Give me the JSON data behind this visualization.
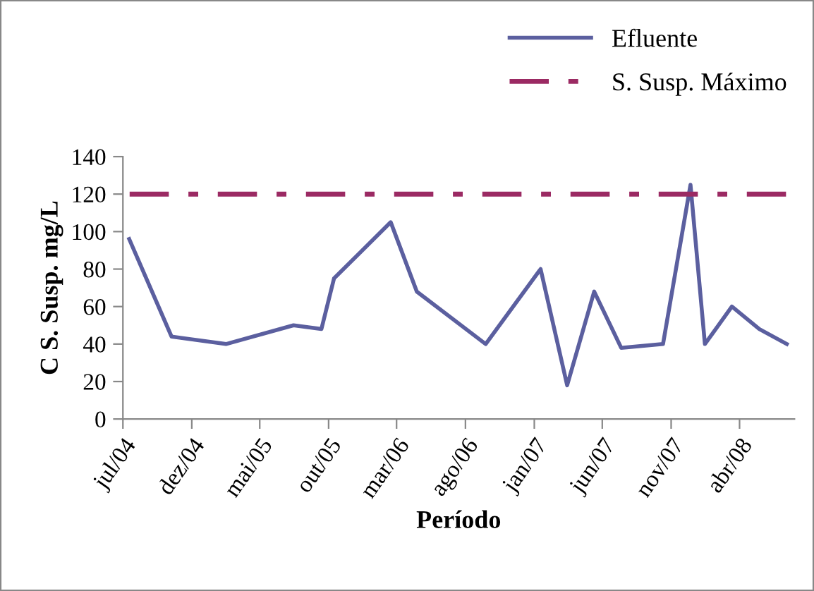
{
  "chart_data": {
    "type": "line",
    "xlabel": "Período",
    "ylabel": "C S. Susp. mg/L",
    "x": [
      "2004-07-15",
      "2004-10-17",
      "2005-02-15",
      "2005-07-15",
      "2005-09-15",
      "2005-10-13",
      "2006-02-16",
      "2006-04-15",
      "2006-09-15",
      "2007-01-15",
      "2007-03-15",
      "2007-05-14",
      "2007-07-13",
      "2007-10-14",
      "2007-12-14",
      "2008-01-15",
      "2008-03-15",
      "2008-05-15",
      "2008-07-15"
    ],
    "series": [
      {
        "name": "Efluente",
        "color": "#5b5f9f",
        "values": [
          96,
          44,
          40,
          50,
          48,
          75,
          105,
          68,
          40,
          80,
          18,
          68,
          38,
          40,
          125,
          40,
          60,
          48,
          40
        ]
      }
    ],
    "ref_lines": [
      {
        "axis": "y",
        "value": 120,
        "label": "S. Susp. Máximo",
        "color": "#9b2a63",
        "line_style": "dashdot"
      }
    ],
    "xlim": [
      "2004-07-01",
      "2008-08-01"
    ],
    "xticks": [
      {
        "value": "2004-07-01",
        "label": "jul/04"
      },
      {
        "value": "2004-12-01",
        "label": "dez/04"
      },
      {
        "value": "2005-05-01",
        "label": "mai/05"
      },
      {
        "value": "2005-10-01",
        "label": "out/05"
      },
      {
        "value": "2006-03-01",
        "label": "mar/06"
      },
      {
        "value": "2006-08-01",
        "label": "ago/06"
      },
      {
        "value": "2007-01-01",
        "label": "jan/07"
      },
      {
        "value": "2007-06-01",
        "label": "jun/07"
      },
      {
        "value": "2007-11-01",
        "label": "nov/07"
      },
      {
        "value": "2008-04-01",
        "label": "abr/08"
      }
    ],
    "ylim": [
      0,
      140
    ],
    "yticks": [
      0,
      20,
      40,
      60,
      80,
      100,
      120,
      140
    ],
    "grid": false,
    "legend": "top right",
    "marker": "none",
    "line_style": "solid"
  }
}
